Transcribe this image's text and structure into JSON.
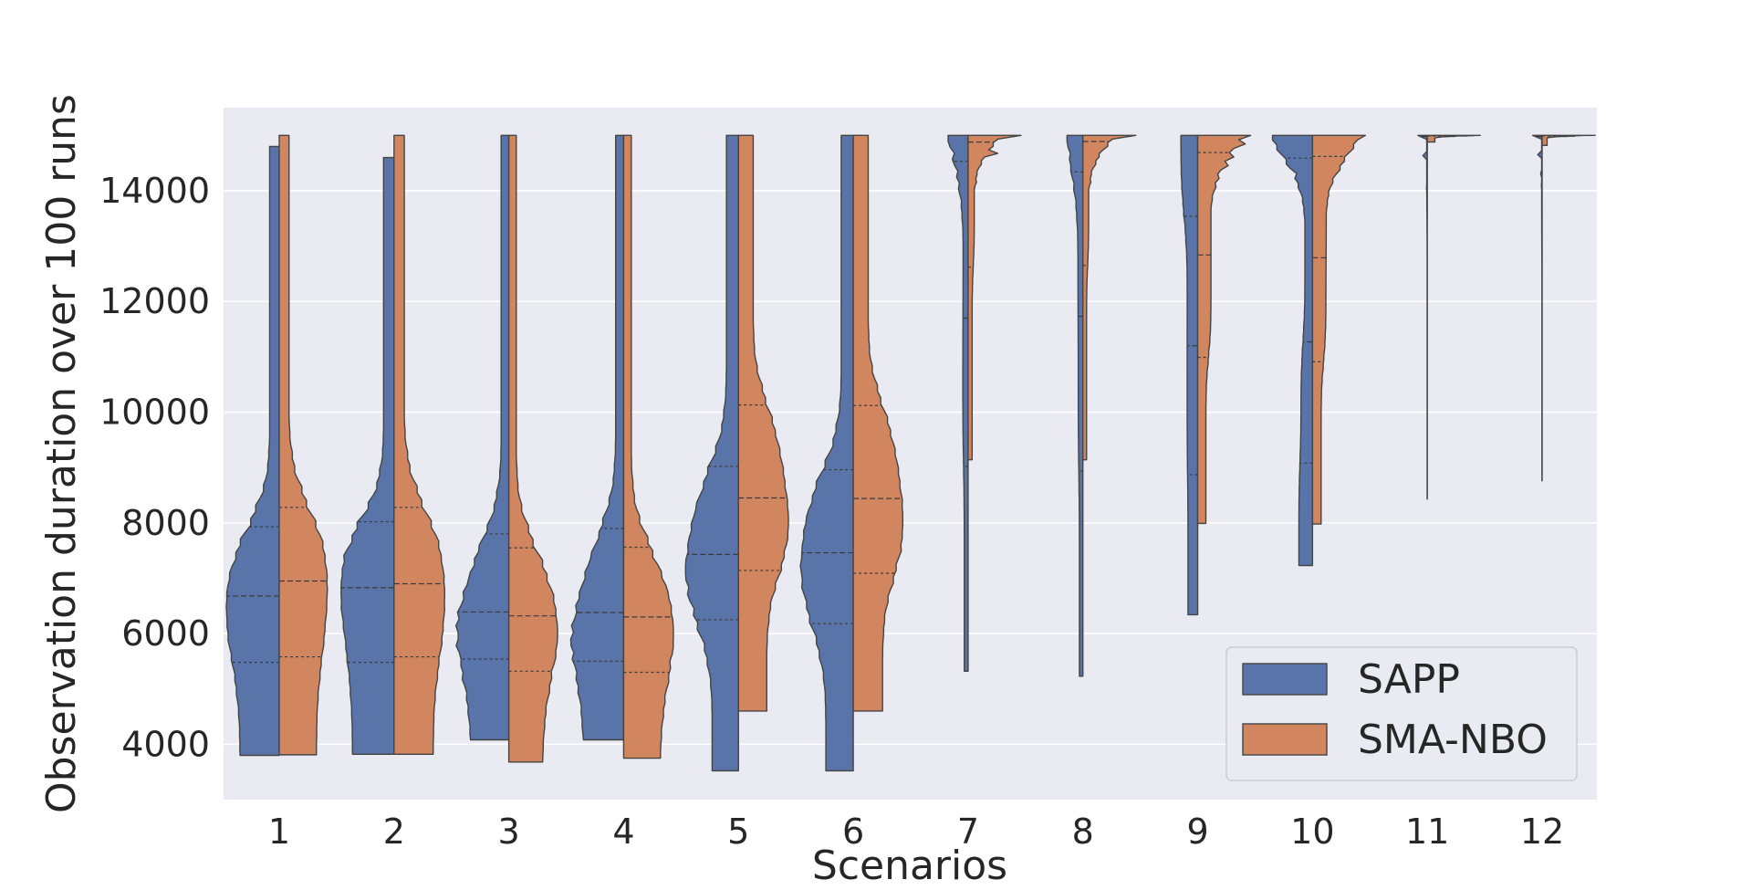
{
  "chart_data": {
    "type": "violin",
    "title": "",
    "xlabel": "Scenarios",
    "ylabel": "Observation duration over 100 runs",
    "categories": [
      "1",
      "2",
      "3",
      "4",
      "5",
      "6",
      "7",
      "8",
      "9",
      "10",
      "11",
      "12"
    ],
    "ylim": [
      3000,
      15500
    ],
    "yticks": [
      4000,
      6000,
      8000,
      10000,
      12000,
      14000
    ],
    "grid": true,
    "legend_position": "bottom-right",
    "inner": "quartile",
    "split": true,
    "series": [
      {
        "name": "SAPP",
        "color": "#5874a8",
        "side": "left",
        "stats": [
          {
            "min": 3800,
            "q1": 5480,
            "median": 6680,
            "q3": 7930,
            "max": 14800
          },
          {
            "min": 3820,
            "q1": 5480,
            "median": 6830,
            "q3": 8020,
            "max": 14600
          },
          {
            "min": 4080,
            "q1": 5540,
            "median": 6390,
            "q3": 7800,
            "max": 15000
          },
          {
            "min": 4080,
            "q1": 5500,
            "median": 6380,
            "q3": 7900,
            "max": 15000
          },
          {
            "min": 3520,
            "q1": 6250,
            "median": 7430,
            "q3": 9020,
            "max": 15000
          },
          {
            "min": 3520,
            "q1": 6180,
            "median": 7460,
            "q3": 8960,
            "max": 15000
          },
          {
            "min": 5320,
            "q1": 9020,
            "median": 11700,
            "q3": 14530,
            "max": 15000
          },
          {
            "min": 5230,
            "q1": 8940,
            "median": 11730,
            "q3": 14340,
            "max": 15000
          },
          {
            "min": 6340,
            "q1": 8870,
            "median": 11200,
            "q3": 13540,
            "max": 15000
          },
          {
            "min": 7230,
            "q1": 9080,
            "median": 11270,
            "q3": 14590,
            "max": 15000
          },
          {
            "min": 8430,
            "q1": 13550,
            "median": 14980,
            "q3": 15000,
            "max": 15000
          },
          {
            "min": 8760,
            "q1": 13100,
            "median": 14980,
            "q3": 15000,
            "max": 15000
          }
        ]
      },
      {
        "name": "SMA-NBO",
        "color": "#d1865f",
        "side": "right",
        "stats": [
          {
            "min": 3810,
            "q1": 5580,
            "median": 6950,
            "q3": 8280,
            "max": 15000
          },
          {
            "min": 3820,
            "q1": 5580,
            "median": 6900,
            "q3": 8280,
            "max": 15000
          },
          {
            "min": 3680,
            "q1": 5320,
            "median": 6320,
            "q3": 7550,
            "max": 15000
          },
          {
            "min": 3750,
            "q1": 5300,
            "median": 6300,
            "q3": 7560,
            "max": 15000
          },
          {
            "min": 4600,
            "q1": 7140,
            "median": 8450,
            "q3": 10130,
            "max": 15000
          },
          {
            "min": 4600,
            "q1": 7090,
            "median": 8440,
            "q3": 10120,
            "max": 15000
          },
          {
            "min": 9140,
            "q1": 12620,
            "median": 14880,
            "q3": 15000,
            "max": 15000
          },
          {
            "min": 9140,
            "q1": 12650,
            "median": 14890,
            "q3": 15000,
            "max": 15000
          },
          {
            "min": 7990,
            "q1": 10990,
            "median": 12840,
            "q3": 14690,
            "max": 15000
          },
          {
            "min": 7980,
            "q1": 10910,
            "median": 12790,
            "q3": 14620,
            "max": 15000
          },
          {
            "min": 14880,
            "q1": 14990,
            "median": 15000,
            "q3": 15000,
            "max": 15000
          },
          {
            "min": 14820,
            "q1": 14990,
            "median": 15000,
            "q3": 15000,
            "max": 15000
          }
        ]
      }
    ]
  }
}
